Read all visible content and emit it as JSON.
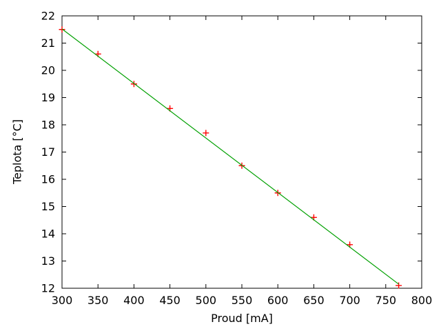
{
  "window": {
    "background": "#ffffff"
  },
  "chart_data": {
    "type": "scatter",
    "title": "",
    "xlabel": "Proud [mA]",
    "ylabel": "Teplota [°C]",
    "xlim": [
      300,
      800
    ],
    "ylim": [
      12,
      22
    ],
    "xticks": [
      300,
      350,
      400,
      450,
      500,
      550,
      600,
      650,
      700,
      750,
      800
    ],
    "yticks": [
      12,
      13,
      14,
      15,
      16,
      17,
      18,
      19,
      20,
      21,
      22
    ],
    "grid": false,
    "legend": "none",
    "axis_color": "#000000",
    "text_color": "#000000",
    "series": [
      {
        "name": "measurement-points",
        "type": "scatter",
        "marker": "plus",
        "color": "#ff0000",
        "points": [
          {
            "x": 300,
            "y": 21.5
          },
          {
            "x": 350,
            "y": 20.6
          },
          {
            "x": 400,
            "y": 19.5
          },
          {
            "x": 450,
            "y": 18.6
          },
          {
            "x": 500,
            "y": 17.7
          },
          {
            "x": 550,
            "y": 16.5
          },
          {
            "x": 600,
            "y": 15.5
          },
          {
            "x": 650,
            "y": 14.6
          },
          {
            "x": 700,
            "y": 13.6
          },
          {
            "x": 768,
            "y": 12.1
          }
        ]
      },
      {
        "name": "linear-fit-line",
        "type": "line",
        "color": "#00a000",
        "points": [
          {
            "x": 300,
            "y": 21.52
          },
          {
            "x": 768,
            "y": 12.15
          }
        ]
      }
    ]
  }
}
